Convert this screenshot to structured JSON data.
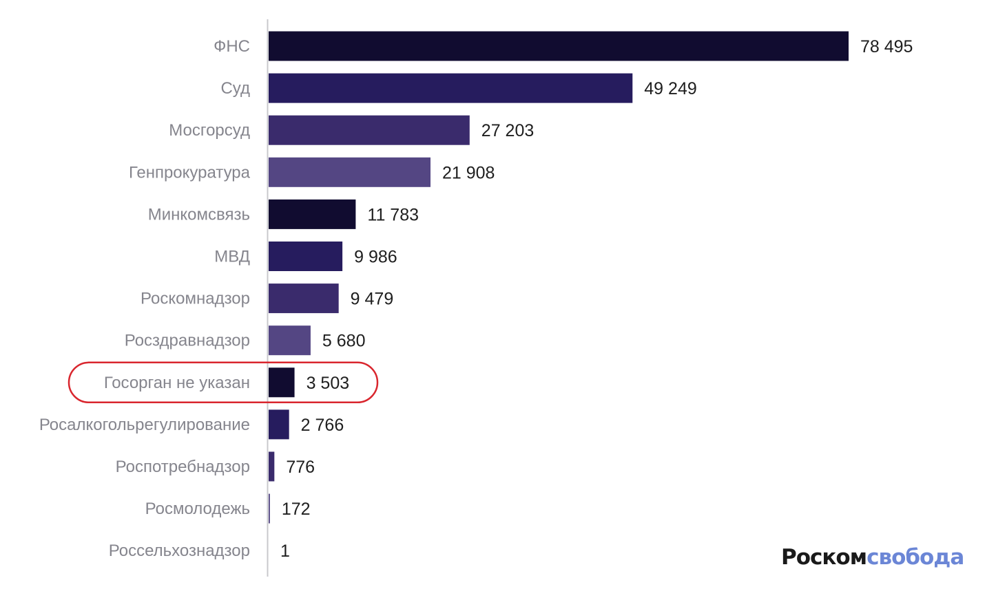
{
  "chart_data": {
    "type": "bar",
    "orientation": "horizontal",
    "categories": [
      "ФНС",
      "Суд",
      "Мосгорсуд",
      "Генпрокуратура",
      "Минкомсвязь",
      "МВД",
      "Роскомнадзор",
      "Росздравнадзор",
      "Госорган не указан",
      "Росалкогольрегулирование",
      "Роспотребнадзор",
      "Росмолодежь",
      "Россельхознадзор"
    ],
    "values": [
      78495,
      49249,
      27203,
      21908,
      11783,
      9986,
      9479,
      5680,
      3503,
      2766,
      776,
      172,
      1
    ],
    "value_labels": [
      "78 495",
      "49 249",
      "27 203",
      "21 908",
      "11 783",
      "9 986",
      "9 479",
      "5 680",
      "3 503",
      "2 766",
      "776",
      "172",
      "1"
    ],
    "bar_colors": [
      "#110c30",
      "#261c5e",
      "#3a2b6c",
      "#544683"
    ],
    "highlighted_category": "Госорган не указан",
    "highlight_color": "#d9262e",
    "grid": false,
    "legend": "none"
  },
  "logo": {
    "part1": "Роском",
    "part2": "свобода"
  }
}
